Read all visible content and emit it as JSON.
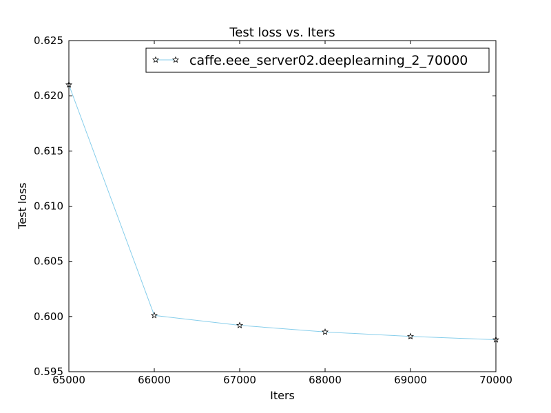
{
  "chart_data": {
    "type": "line",
    "title": "Test loss  vs. Iters",
    "xlabel": "Iters",
    "ylabel": "Test loss",
    "xlim": [
      65000,
      70000
    ],
    "ylim": [
      0.595,
      0.625
    ],
    "x_ticks": [
      "65000",
      "66000",
      "67000",
      "68000",
      "69000",
      "70000"
    ],
    "y_ticks": [
      "0.595",
      "0.600",
      "0.605",
      "0.610",
      "0.615",
      "0.620",
      "0.625"
    ],
    "x_tick_values": [
      65000,
      66000,
      67000,
      68000,
      69000,
      70000
    ],
    "y_tick_values": [
      0.595,
      0.6,
      0.605,
      0.61,
      0.615,
      0.62,
      0.625
    ],
    "grid": false,
    "legend_position": "top-right",
    "series": [
      {
        "name": "caffe.eee_server02.deeplearning_2_70000",
        "color": "#87ceeb",
        "marker": "star",
        "x": [
          65000,
          66000,
          67000,
          68000,
          69000,
          70000
        ],
        "y": [
          0.621,
          0.6001,
          0.5992,
          0.5986,
          0.5982,
          0.5979
        ]
      }
    ]
  }
}
